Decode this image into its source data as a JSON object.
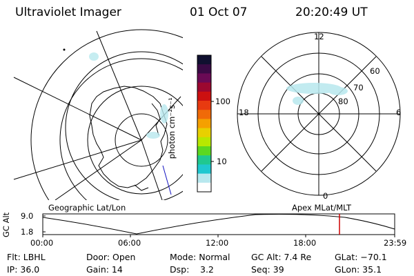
{
  "header": {
    "title": "Ultraviolet Imager",
    "date": "01 Oct 07",
    "time": "20:20:49 UT"
  },
  "colorbar": {
    "label": "photon cm⁻²s⁻¹",
    "ticks": [
      "100",
      "10"
    ],
    "colors": [
      "#101030",
      "#3a0a45",
      "#6a0a55",
      "#9c0830",
      "#cc1010",
      "#e83a10",
      "#f06a08",
      "#f5a000",
      "#e8d000",
      "#b8e800",
      "#5cd820",
      "#20c890",
      "#20c8d0",
      "#b8e8ee",
      "#ffffff"
    ]
  },
  "polar": {
    "mlt_labels": [
      "12",
      "18",
      "6",
      "0"
    ],
    "lat_labels": [
      "60",
      "70",
      "80"
    ]
  },
  "labels": {
    "left_plot": "Geographic Lat/Lon",
    "right_plot": "Apex MLat/MLT"
  },
  "altitude_plot": {
    "ylabel": "GC Alt",
    "yticks": [
      "9.0",
      "1.8"
    ],
    "xticks": [
      "00:00",
      "06:00",
      "12:00",
      "18:00",
      "23:59"
    ],
    "marker_color": "#cc0000",
    "marker_time": "20:20"
  },
  "status": {
    "filter": "Flt: LBHL",
    "ip": "IP: 36.0",
    "door": "Door: Open",
    "gain": "Gain: 14",
    "mode": "Mode: Normal",
    "dsp_label": "Dsp:",
    "dsp_value": "3.2",
    "gc_alt": "GC Alt: 7.4 Re",
    "seq": "Seq: 39",
    "glat": "GLat: −70.1",
    "glon": "GLon:  35.1"
  }
}
